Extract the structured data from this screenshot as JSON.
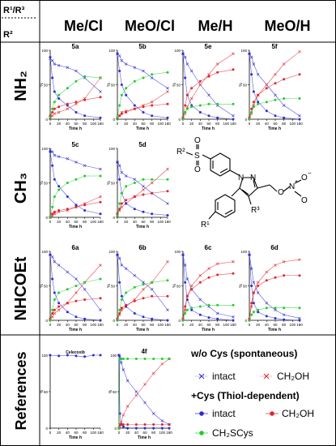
{
  "header": {
    "corner_r1r3": "R¹/R³",
    "corner_r2": "R²",
    "columns": [
      "Me/Cl",
      "MeO/Cl",
      "Me/H",
      "MeO/H"
    ]
  },
  "rows": [
    "NH₂",
    "CH₃",
    "NHCOEt",
    "References"
  ],
  "axis": {
    "xlabel": "Time h",
    "ylabel": "%",
    "xticks": [
      "0",
      "20",
      "40",
      "60",
      "80",
      "100",
      "180"
    ],
    "yticks": [
      "0",
      "50",
      "100"
    ]
  },
  "colors": {
    "intact": "#2b2bd6",
    "ch2oh": "#e0262c",
    "ch2scys": "#22cc2e",
    "grid": "#000000"
  },
  "structure": {
    "r1": "R¹",
    "r2": "R²",
    "r3": "R³",
    "s": "S",
    "o1": "O",
    "o2": "O",
    "n1": "N",
    "n2": "N",
    "o3": "O",
    "n3": "N",
    "plus": "+",
    "o4": "O",
    "minus": "−",
    "o5": "O"
  },
  "legend": {
    "heading1": "w/o Cys (spontaneous)",
    "intact_label": "intact",
    "ch2oh_label": "CH₂OH",
    "heading2": "+Cys (Thiol-dependent)",
    "intact2_label": "intact",
    "ch2oh2_label": "CH₂OH",
    "ch2scys_label": "CH₂SCys"
  },
  "chart_data": [
    {
      "id": "5a",
      "title": "5a",
      "type": "line",
      "x": [
        0,
        5,
        10,
        20,
        40,
        60,
        80,
        180
      ],
      "ylim": [
        0,
        100
      ],
      "series": [
        {
          "name": "intact",
          "style": "spontaneous",
          "values": [
            88,
            85,
            80,
            78,
            75,
            70,
            60,
            40
          ]
        },
        {
          "name": "CH2OH",
          "style": "spontaneous",
          "values": [
            2,
            5,
            8,
            10,
            15,
            22,
            30,
            60
          ]
        },
        {
          "name": "intact",
          "style": "thiol",
          "values": [
            90,
            60,
            40,
            30,
            20,
            10,
            5,
            2
          ]
        },
        {
          "name": "CH2OH",
          "style": "thiol",
          "values": [
            5,
            10,
            15,
            18,
            22,
            25,
            28,
            32
          ]
        },
        {
          "name": "CH2SCys",
          "style": "thiol",
          "values": [
            2,
            15,
            25,
            35,
            45,
            55,
            62,
            60
          ]
        }
      ]
    },
    {
      "id": "5b",
      "title": "5b",
      "type": "line",
      "x": [
        0,
        5,
        10,
        20,
        40,
        60,
        80,
        180
      ],
      "ylim": [
        0,
        100
      ],
      "series": [
        {
          "name": "intact",
          "style": "spontaneous",
          "values": [
            95,
            92,
            85,
            80,
            75,
            70,
            60,
            45
          ]
        },
        {
          "name": "CH2OH",
          "style": "spontaneous",
          "values": [
            2,
            5,
            10,
            12,
            15,
            20,
            25,
            40
          ]
        },
        {
          "name": "intact",
          "style": "thiol",
          "values": [
            95,
            70,
            50,
            35,
            20,
            10,
            5,
            2
          ]
        },
        {
          "name": "CH2OH",
          "style": "thiol",
          "values": [
            2,
            5,
            8,
            10,
            15,
            18,
            20,
            22
          ]
        },
        {
          "name": "CH2SCys",
          "style": "thiol",
          "values": [
            2,
            20,
            35,
            45,
            55,
            60,
            65,
            68
          ]
        }
      ]
    },
    {
      "id": "5e",
      "title": "5e",
      "type": "line",
      "x": [
        0,
        5,
        10,
        20,
        40,
        60,
        80,
        180
      ],
      "ylim": [
        0,
        100
      ],
      "series": [
        {
          "name": "intact",
          "style": "spontaneous",
          "values": [
            95,
            90,
            80,
            70,
            50,
            35,
            20,
            5
          ]
        },
        {
          "name": "CH2OH",
          "style": "spontaneous",
          "values": [
            2,
            8,
            18,
            30,
            50,
            65,
            80,
            95
          ]
        },
        {
          "name": "intact",
          "style": "thiol",
          "values": [
            95,
            60,
            35,
            20,
            10,
            5,
            2,
            0
          ]
        },
        {
          "name": "CH2OH",
          "style": "thiol",
          "values": [
            2,
            20,
            35,
            45,
            55,
            62,
            68,
            72
          ]
        },
        {
          "name": "CH2SCys",
          "style": "thiol",
          "values": [
            0,
            10,
            15,
            18,
            20,
            22,
            22,
            22
          ]
        }
      ]
    },
    {
      "id": "5f",
      "title": "5f",
      "type": "line",
      "x": [
        0,
        5,
        10,
        20,
        40,
        60,
        80,
        180
      ],
      "ylim": [
        0,
        100
      ],
      "series": [
        {
          "name": "intact",
          "style": "spontaneous",
          "values": [
            95,
            90,
            80,
            65,
            50,
            35,
            20,
            5
          ]
        },
        {
          "name": "CH2OH",
          "style": "spontaneous",
          "values": [
            2,
            8,
            20,
            35,
            50,
            65,
            80,
            98
          ]
        },
        {
          "name": "intact",
          "style": "thiol",
          "values": [
            95,
            65,
            40,
            25,
            12,
            5,
            2,
            0
          ]
        },
        {
          "name": "CH2OH",
          "style": "thiol",
          "values": [
            2,
            15,
            25,
            35,
            45,
            52,
            58,
            65
          ]
        },
        {
          "name": "CH2SCys",
          "style": "thiol",
          "values": [
            0,
            10,
            18,
            22,
            25,
            28,
            30,
            30
          ]
        }
      ]
    },
    {
      "id": "5c",
      "title": "5c",
      "type": "line",
      "x": [
        0,
        5,
        10,
        20,
        40,
        60,
        80,
        180
      ],
      "ylim": [
        0,
        100
      ],
      "series": [
        {
          "name": "intact",
          "style": "spontaneous",
          "values": [
            98,
            95,
            90,
            88,
            85,
            80,
            75,
            70
          ]
        },
        {
          "name": "CH2OH",
          "style": "spontaneous",
          "values": [
            0,
            2,
            5,
            8,
            10,
            15,
            20,
            30
          ]
        },
        {
          "name": "intact",
          "style": "thiol",
          "values": [
            95,
            75,
            55,
            45,
            30,
            18,
            10,
            5
          ]
        },
        {
          "name": "CH2OH",
          "style": "thiol",
          "values": [
            0,
            5,
            8,
            10,
            12,
            15,
            18,
            22
          ]
        },
        {
          "name": "CH2SCys",
          "style": "thiol",
          "values": [
            0,
            15,
            30,
            40,
            50,
            55,
            60,
            60
          ]
        }
      ]
    },
    {
      "id": "5d",
      "title": "5d",
      "type": "line",
      "x": [
        0,
        5,
        10,
        20,
        40,
        60,
        80,
        180
      ],
      "ylim": [
        0,
        100
      ],
      "series": [
        {
          "name": "intact",
          "style": "spontaneous",
          "values": [
            80,
            75,
            65,
            60,
            55,
            45,
            35,
            20
          ]
        },
        {
          "name": "CH2OH",
          "style": "spontaneous",
          "values": [
            5,
            10,
            15,
            20,
            30,
            40,
            50,
            70
          ]
        },
        {
          "name": "intact",
          "style": "thiol",
          "values": [
            80,
            55,
            35,
            20,
            12,
            8,
            5,
            3
          ]
        },
        {
          "name": "CH2OH",
          "style": "thiol",
          "values": [
            5,
            12,
            20,
            25,
            30,
            33,
            35,
            38
          ]
        },
        {
          "name": "CH2SCys",
          "style": "thiol",
          "values": [
            2,
            20,
            35,
            45,
            50,
            55,
            55,
            55
          ]
        }
      ]
    },
    {
      "id": "6a",
      "title": "6a",
      "type": "line",
      "x": [
        0,
        5,
        10,
        20,
        40,
        60,
        80,
        180
      ],
      "ylim": [
        0,
        100
      ],
      "series": [
        {
          "name": "intact",
          "style": "spontaneous",
          "values": [
            95,
            92,
            85,
            80,
            70,
            60,
            45,
            15
          ]
        },
        {
          "name": "CH2OH",
          "style": "spontaneous",
          "values": [
            2,
            5,
            10,
            15,
            25,
            40,
            55,
            80
          ]
        },
        {
          "name": "intact",
          "style": "thiol",
          "values": [
            95,
            60,
            40,
            25,
            12,
            5,
            2,
            0
          ]
        },
        {
          "name": "CH2OH",
          "style": "thiol",
          "values": [
            2,
            10,
            15,
            20,
            25,
            28,
            30,
            32
          ]
        },
        {
          "name": "CH2SCys",
          "style": "thiol",
          "values": [
            0,
            15,
            30,
            40,
            45,
            50,
            55,
            60
          ]
        }
      ]
    },
    {
      "id": "6b",
      "title": "6b",
      "type": "line",
      "x": [
        0,
        5,
        10,
        20,
        40,
        60,
        80,
        180
      ],
      "ylim": [
        0,
        100
      ],
      "series": [
        {
          "name": "intact",
          "style": "spontaneous",
          "values": [
            95,
            90,
            80,
            75,
            65,
            55,
            45,
            15
          ]
        },
        {
          "name": "CH2OH",
          "style": "spontaneous",
          "values": [
            2,
            8,
            15,
            20,
            30,
            45,
            55,
            85
          ]
        },
        {
          "name": "intact",
          "style": "thiol",
          "values": [
            95,
            55,
            35,
            20,
            10,
            5,
            2,
            0
          ]
        },
        {
          "name": "CH2OH",
          "style": "thiol",
          "values": [
            2,
            10,
            18,
            22,
            28,
            32,
            35,
            35
          ]
        },
        {
          "name": "CH2SCys",
          "style": "thiol",
          "values": [
            0,
            15,
            30,
            40,
            48,
            52,
            55,
            58
          ]
        }
      ]
    },
    {
      "id": "6c",
      "title": "6c",
      "type": "line",
      "x": [
        0,
        5,
        10,
        20,
        40,
        60,
        80,
        180
      ],
      "ylim": [
        0,
        100
      ],
      "series": [
        {
          "name": "intact",
          "style": "spontaneous",
          "values": [
            95,
            80,
            60,
            45,
            30,
            20,
            10,
            5
          ]
        },
        {
          "name": "CH2OH",
          "style": "spontaneous",
          "values": [
            2,
            15,
            35,
            50,
            65,
            75,
            82,
            85
          ]
        },
        {
          "name": "intact",
          "style": "thiol",
          "values": [
            95,
            55,
            30,
            15,
            8,
            4,
            2,
            0
          ]
        },
        {
          "name": "CH2OH",
          "style": "thiol",
          "values": [
            2,
            20,
            35,
            45,
            55,
            62,
            66,
            68
          ]
        },
        {
          "name": "CH2SCys",
          "style": "thiol",
          "values": [
            0,
            10,
            15,
            18,
            20,
            22,
            22,
            22
          ]
        }
      ]
    },
    {
      "id": "6d",
      "title": "6d",
      "type": "line",
      "x": [
        0,
        5,
        10,
        20,
        40,
        60,
        80,
        180
      ],
      "ylim": [
        0,
        100
      ],
      "series": [
        {
          "name": "intact",
          "style": "spontaneous",
          "values": [
            95,
            75,
            55,
            40,
            25,
            15,
            8,
            3
          ]
        },
        {
          "name": "CH2OH",
          "style": "spontaneous",
          "values": [
            2,
            20,
            40,
            55,
            70,
            80,
            85,
            88
          ]
        },
        {
          "name": "intact",
          "style": "thiol",
          "values": [
            95,
            50,
            25,
            12,
            6,
            3,
            1,
            0
          ]
        },
        {
          "name": "CH2OH",
          "style": "thiol",
          "values": [
            2,
            25,
            40,
            50,
            58,
            62,
            65,
            65
          ]
        },
        {
          "name": "CH2SCys",
          "style": "thiol",
          "values": [
            0,
            8,
            12,
            15,
            18,
            18,
            18,
            18
          ]
        }
      ]
    },
    {
      "id": "celecoxib",
      "title": "Celecoxib",
      "type": "line",
      "x": [
        0,
        20,
        40,
        60,
        80,
        100,
        180
      ],
      "ylim": [
        0,
        100
      ],
      "series": [
        {
          "name": "intact",
          "style": "thiol",
          "values": [
            100,
            99,
            100,
            99,
            98,
            100,
            100
          ]
        }
      ]
    },
    {
      "id": "4f",
      "title": "4f",
      "type": "line",
      "x": [
        0,
        2,
        5,
        10,
        20,
        40,
        60,
        80,
        100,
        180
      ],
      "ylim": [
        0,
        100
      ],
      "series": [
        {
          "name": "intact",
          "style": "spontaneous",
          "values": [
            100,
            98,
            90,
            80,
            65,
            50,
            35,
            20,
            10,
            5
          ]
        },
        {
          "name": "CH2OH",
          "style": "spontaneous",
          "values": [
            0,
            2,
            8,
            18,
            30,
            45,
            60,
            75,
            88,
            95
          ]
        },
        {
          "name": "intact",
          "style": "thiol",
          "values": [
            100,
            20,
            5,
            2,
            0,
            0,
            0,
            0,
            0,
            0
          ]
        },
        {
          "name": "CH2OH",
          "style": "thiol",
          "values": [
            0,
            5,
            5,
            5,
            5,
            5,
            5,
            5,
            5,
            5
          ]
        },
        {
          "name": "CH2SCys",
          "style": "thiol",
          "values": [
            0,
            95,
            95,
            95,
            95,
            95,
            95,
            95,
            95,
            95
          ]
        }
      ]
    }
  ]
}
